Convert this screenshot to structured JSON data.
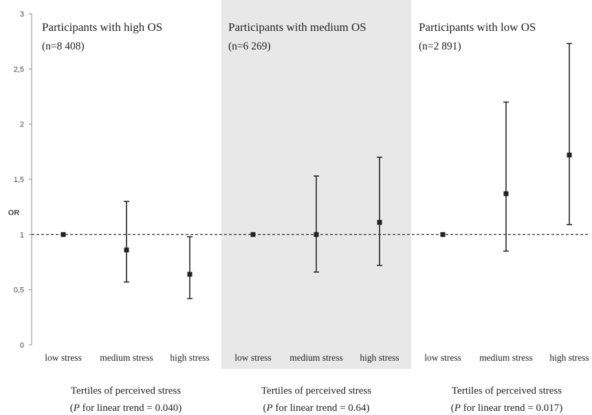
{
  "chart_data": {
    "type": "scatter",
    "ylabel": "OR",
    "ylim": [
      0,
      3
    ],
    "yticks": [
      "0",
      "0,5",
      "1",
      "1,5",
      "2",
      "2,5",
      "3"
    ],
    "reference_line": 1,
    "grid": false,
    "colors": {
      "shaded_panel": "#e8e8e8",
      "marker": "#222222",
      "axis": "#888888"
    },
    "panels": [
      {
        "title": "Participants with high OS",
        "n": "(n=8 408)",
        "shaded": false,
        "categories": [
          "low stress",
          "medium stress",
          "high stress"
        ],
        "or": [
          1.0,
          0.86,
          0.64
        ],
        "lower": [
          null,
          0.57,
          0.42
        ],
        "upper": [
          null,
          1.3,
          0.98
        ],
        "group_label": "Tertiles of perceived stress",
        "trend_prefix": "(",
        "trend_p": "P",
        "trend_text": " for linear trend = 0.040)"
      },
      {
        "title": "Participants with medium OS",
        "n": "(n=6 269)",
        "shaded": true,
        "categories": [
          "low stress",
          "medium  stress",
          "high stress"
        ],
        "or": [
          1.0,
          1.0,
          1.11
        ],
        "lower": [
          null,
          0.66,
          0.72
        ],
        "upper": [
          null,
          1.53,
          1.7
        ],
        "group_label": "Tertiles of perceived stress",
        "trend_prefix": "(",
        "trend_p": "P",
        "trend_text": " for linear trend = 0.64)"
      },
      {
        "title": "Participants with low OS",
        "n": "(n=2 891)",
        "shaded": false,
        "categories": [
          "low stress",
          "medium stress",
          "high stress"
        ],
        "or": [
          1.0,
          1.37,
          1.72
        ],
        "lower": [
          null,
          0.85,
          1.09
        ],
        "upper": [
          null,
          2.2,
          2.73
        ],
        "group_label": "Tertiles of perceived stress",
        "trend_prefix": "(",
        "trend_p": "P",
        "trend_text": " for linear trend = 0.017)"
      }
    ]
  }
}
